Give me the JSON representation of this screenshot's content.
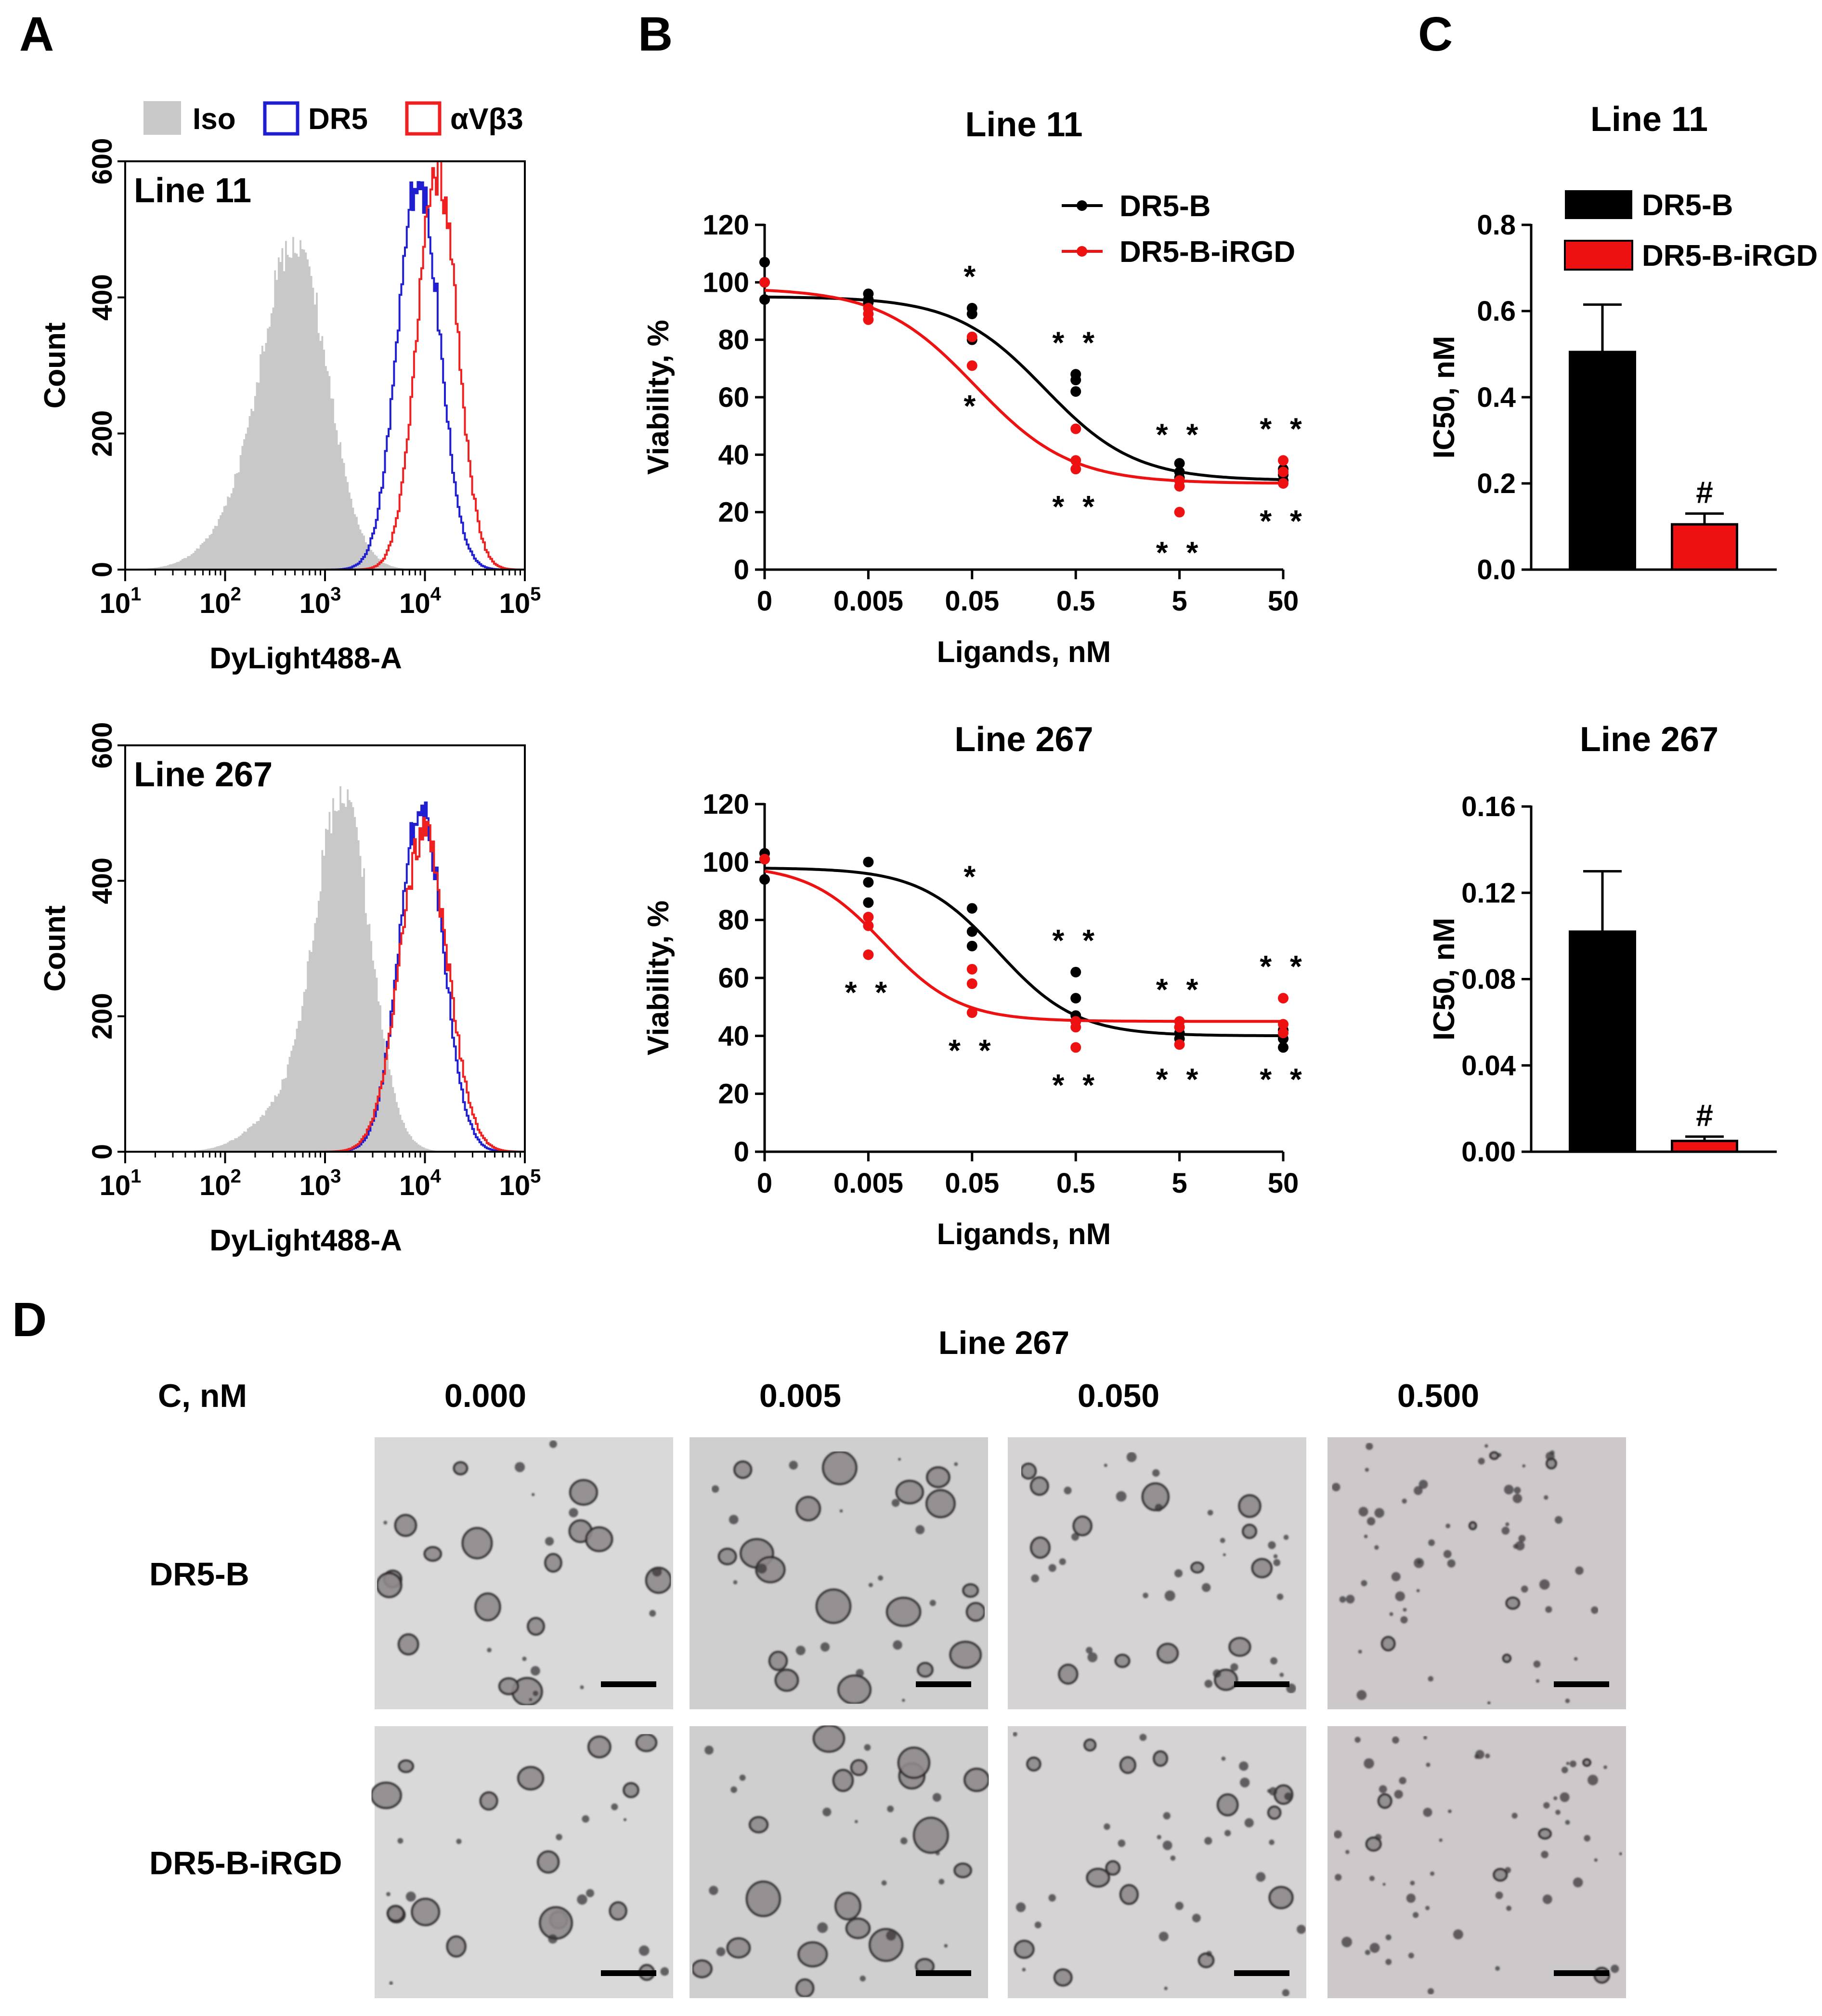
{
  "panel_labels": {
    "a": "A",
    "b": "B",
    "c": "C",
    "d": "D"
  },
  "colors": {
    "iso": "#c8c8c8",
    "dr5": "#1f1fd1",
    "avb3": "#ee2020",
    "dr5b": "#000000",
    "irgd": "#ee1111"
  },
  "chart_data": [
    {
      "id": "A1",
      "type": "histogram",
      "title": "Line 11",
      "xlabel": "DyLight488-A",
      "ylabel": "Count",
      "xscale": "log",
      "xlim": [
        10,
        100000
      ],
      "ylim": [
        0,
        600
      ],
      "yticks": [
        "0",
        "200",
        "400",
        "600"
      ],
      "xticks": [
        {
          "base": "10",
          "exp": "1"
        },
        {
          "base": "10",
          "exp": "2"
        },
        {
          "base": "10",
          "exp": "3"
        },
        {
          "base": "10",
          "exp": "4"
        },
        {
          "base": "10",
          "exp": "5"
        }
      ],
      "legend": [
        "Iso",
        "DR5",
        "αVβ3"
      ],
      "series": [
        {
          "name": "Iso",
          "style": "filled",
          "peak_x": 500,
          "peak_count": 470,
          "log_width": 0.32
        },
        {
          "name": "DR5",
          "style": "outline",
          "peak_x": 8500,
          "peak_count": 575,
          "log_width": 0.21
        },
        {
          "name": "αVβ3",
          "style": "outline",
          "peak_x": 13000,
          "peak_count": 585,
          "log_width": 0.2
        }
      ]
    },
    {
      "id": "A2",
      "type": "histogram",
      "title": "Line 267",
      "xlabel": "DyLight488-A",
      "ylabel": "Count",
      "xscale": "log",
      "xlim": [
        10,
        100000
      ],
      "ylim": [
        0,
        600
      ],
      "yticks": [
        "0",
        "200",
        "400",
        "600"
      ],
      "xticks": [
        {
          "base": "10",
          "exp": "1"
        },
        {
          "base": "10",
          "exp": "2"
        },
        {
          "base": "10",
          "exp": "3"
        },
        {
          "base": "10",
          "exp": "4"
        },
        {
          "base": "10",
          "exp": "5"
        }
      ],
      "series": [
        {
          "name": "Iso",
          "style": "filled",
          "peak_x": 1500,
          "peak_count": 520,
          "log_width": 0.27
        },
        {
          "name": "DR5",
          "style": "outline",
          "peak_x": 9000,
          "peak_count": 510,
          "log_width": 0.22
        },
        {
          "name": "αVβ3",
          "style": "outline",
          "peak_x": 9500,
          "peak_count": 470,
          "log_width": 0.24
        }
      ]
    },
    {
      "id": "B1",
      "type": "scatter",
      "title": "Line 11",
      "xlabel": "Ligands, nM",
      "ylabel": "Viability, %",
      "categories": [
        "0",
        "0.005",
        "0.05",
        "0.5",
        "5",
        "50"
      ],
      "ylim": [
        0,
        120
      ],
      "yticks": [
        "0",
        "20",
        "40",
        "60",
        "80",
        "100",
        "120"
      ],
      "legend": [
        "DR5-B",
        "DR5-B-iRGD"
      ],
      "series": [
        {
          "name": "DR5-B",
          "points": [
            [
              0,
              107
            ],
            [
              0,
              100
            ],
            [
              0,
              94
            ],
            [
              1,
              96
            ],
            [
              1,
              94
            ],
            [
              1,
              93
            ],
            [
              2,
              91
            ],
            [
              2,
              89
            ],
            [
              2,
              80
            ],
            [
              3,
              68
            ],
            [
              3,
              66
            ],
            [
              3,
              62
            ],
            [
              4,
              37
            ],
            [
              4,
              34
            ],
            [
              4,
              32
            ],
            [
              5,
              35
            ],
            [
              5,
              33
            ],
            [
              5,
              31
            ]
          ],
          "fit": {
            "bottom": 31,
            "top": 95,
            "logec50": -0.6,
            "hill": 1.0
          }
        },
        {
          "name": "DR5-B-iRGD",
          "points": [
            [
              0,
              100
            ],
            [
              1,
              91
            ],
            [
              1,
              89
            ],
            [
              1,
              87
            ],
            [
              2,
              81
            ],
            [
              2,
              71
            ],
            [
              3,
              49
            ],
            [
              3,
              38
            ],
            [
              3,
              35
            ],
            [
              4,
              31
            ],
            [
              4,
              29
            ],
            [
              4,
              20
            ],
            [
              5,
              38
            ],
            [
              5,
              34
            ],
            [
              5,
              30
            ]
          ],
          "fit": {
            "bottom": 30,
            "top": 98,
            "logec50": -1.27,
            "hill": 0.95
          }
        }
      ],
      "annotations": [
        {
          "x": 2,
          "y": 97,
          "pos": "above",
          "text": "*"
        },
        {
          "x": 2,
          "y": 63,
          "pos": "below",
          "text": "*"
        },
        {
          "x": 3,
          "y": 74,
          "pos": "above",
          "text": "**"
        },
        {
          "x": 3,
          "y": 28,
          "pos": "below",
          "text": "**"
        },
        {
          "x": 4,
          "y": 42,
          "pos": "above",
          "text": "**"
        },
        {
          "x": 4,
          "y": 12,
          "pos": "below",
          "text": "**"
        },
        {
          "x": 5,
          "y": 44,
          "pos": "above",
          "text": "**"
        },
        {
          "x": 5,
          "y": 23,
          "pos": "below",
          "text": "**"
        }
      ]
    },
    {
      "id": "B2",
      "type": "scatter",
      "title": "Line 267",
      "xlabel": "Ligands, nM",
      "ylabel": "Viability, %",
      "categories": [
        "0",
        "0.005",
        "0.05",
        "0.5",
        "5",
        "50"
      ],
      "ylim": [
        0,
        120
      ],
      "yticks": [
        "0",
        "20",
        "40",
        "60",
        "80",
        "100",
        "120"
      ],
      "series": [
        {
          "name": "DR5-B",
          "points": [
            [
              0,
              103
            ],
            [
              0,
              101
            ],
            [
              0,
              94
            ],
            [
              1,
              100
            ],
            [
              1,
              93
            ],
            [
              1,
              86
            ],
            [
              2,
              84
            ],
            [
              2,
              76
            ],
            [
              2,
              71
            ],
            [
              3,
              62
            ],
            [
              3,
              53
            ],
            [
              3,
              47
            ],
            [
              3,
              45
            ],
            [
              4,
              43
            ],
            [
              4,
              41
            ],
            [
              4,
              39
            ],
            [
              5,
              42
            ],
            [
              5,
              39
            ],
            [
              5,
              36
            ]
          ],
          "fit": {
            "bottom": 40,
            "top": 98,
            "logec50": -1.05,
            "hill": 1.15
          }
        },
        {
          "name": "DR5-B-iRGD",
          "points": [
            [
              0,
              101
            ],
            [
              1,
              81
            ],
            [
              1,
              78
            ],
            [
              1,
              68
            ],
            [
              2,
              63
            ],
            [
              2,
              58
            ],
            [
              2,
              48
            ],
            [
              3,
              45
            ],
            [
              3,
              43
            ],
            [
              3,
              36
            ],
            [
              4,
              45
            ],
            [
              4,
              43
            ],
            [
              4,
              37
            ],
            [
              5,
              53
            ],
            [
              5,
              44
            ],
            [
              5,
              41
            ]
          ],
          "fit": {
            "bottom": 45,
            "top": 99,
            "logec50": -2.15,
            "hill": 1.2
          }
        }
      ],
      "annotations": [
        {
          "x": 1,
          "y": 61,
          "pos": "below",
          "text": "**"
        },
        {
          "x": 2,
          "y": 90,
          "pos": "above",
          "text": "*"
        },
        {
          "x": 2,
          "y": 41,
          "pos": "below",
          "text": "**"
        },
        {
          "x": 3,
          "y": 68,
          "pos": "above",
          "text": "**"
        },
        {
          "x": 3,
          "y": 29,
          "pos": "below",
          "text": "**"
        },
        {
          "x": 4,
          "y": 51,
          "pos": "above",
          "text": "**"
        },
        {
          "x": 4,
          "y": 31,
          "pos": "below",
          "text": "**"
        },
        {
          "x": 5,
          "y": 59,
          "pos": "above",
          "text": "**"
        },
        {
          "x": 5,
          "y": 31,
          "pos": "below",
          "text": "**"
        }
      ]
    },
    {
      "id": "C1",
      "type": "bar",
      "title": "Line 11",
      "ylabel": "IC50, nM",
      "categories": [
        "DR5-B",
        "DR5-B-iRGD"
      ],
      "values": [
        0.505,
        0.105
      ],
      "errors": [
        0.11,
        0.025
      ],
      "ylim": [
        0,
        0.8
      ],
      "yticks": [
        "0.0",
        "0.2",
        "0.4",
        "0.6",
        "0.8"
      ],
      "legend": [
        "DR5-B",
        "DR5-B-iRGD"
      ],
      "annotations": [
        {
          "bar": 1,
          "text": "#"
        }
      ]
    },
    {
      "id": "C2",
      "type": "bar",
      "title": "Line 267",
      "ylabel": "IC50, nM",
      "categories": [
        "DR5-B",
        "DR5-B-iRGD"
      ],
      "values": [
        0.102,
        0.005
      ],
      "errors": [
        0.028,
        0.002
      ],
      "ylim": [
        0,
        0.16
      ],
      "yticks": [
        "0.00",
        "0.04",
        "0.08",
        "0.12",
        "0.16"
      ],
      "annotations": [
        {
          "bar": 1,
          "text": "#"
        }
      ]
    }
  ],
  "panel_d": {
    "title": "Line 267",
    "conc_label": "C, nM",
    "columns": [
      "0.000",
      "0.005",
      "0.050",
      "0.500"
    ],
    "rows": [
      "DR5-B",
      "DR5-B-iRGD"
    ]
  }
}
